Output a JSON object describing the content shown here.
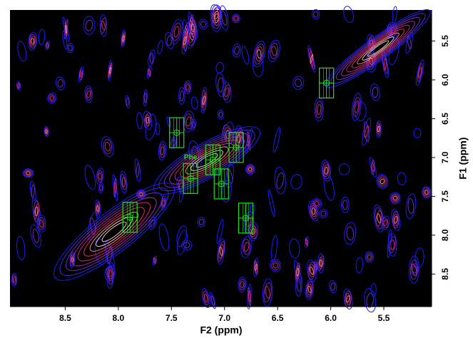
{
  "chart_data": {
    "type": "contour",
    "x_label": "F2 (ppm)",
    "y_label": "F1 (ppm)",
    "xlim": [
      9.02,
      5.05
    ],
    "ylim": [
      5.1,
      8.92
    ],
    "xticks": [
      8.5,
      {
        "value": 8,
        "label": "8.0"
      },
      7.5,
      {
        "value": 7,
        "label": "7.0"
      },
      6.5,
      {
        "value": 6,
        "label": "6.0"
      },
      5.5
    ],
    "yticks": [
      5.5,
      {
        "value": 6,
        "label": "6.0"
      },
      6.5,
      {
        "value": 7,
        "label": "7.0"
      },
      7.5,
      {
        "value": 8,
        "label": "8.0"
      },
      8.5
    ],
    "peak_color": "#22e022",
    "peaks": [
      {
        "x": 7.45,
        "y": 6.68
      },
      {
        "x": 6.04,
        "y": 6.04
      },
      {
        "x": 6.89,
        "y": 6.87
      },
      {
        "x": 7.11,
        "y": 7.03
      },
      {
        "x": 7.32,
        "y": 7.27
      },
      {
        "x": 7.03,
        "y": 7.34
      },
      {
        "x": 7.89,
        "y": 7.77
      },
      {
        "x": 6.8,
        "y": 7.78
      }
    ],
    "annotations": [
      {
        "text": "Phe",
        "x": 7.32,
        "y": 7.0
      }
    ]
  }
}
